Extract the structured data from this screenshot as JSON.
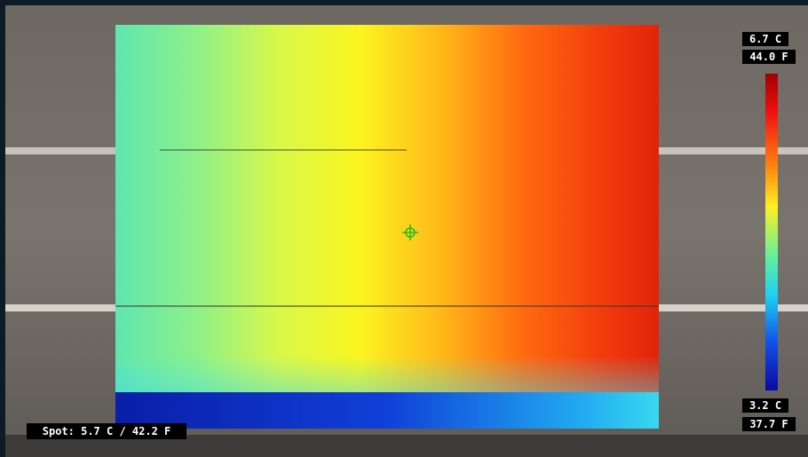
{
  "overlay": {
    "scale_max": {
      "celsius": "6.7 C",
      "fahrenheit": "44.0 F"
    },
    "scale_min": {
      "celsius": "3.2 C",
      "fahrenheit": "37.7 F"
    },
    "spot_reading": "Spot: 5.7 C / 42.2 F"
  }
}
